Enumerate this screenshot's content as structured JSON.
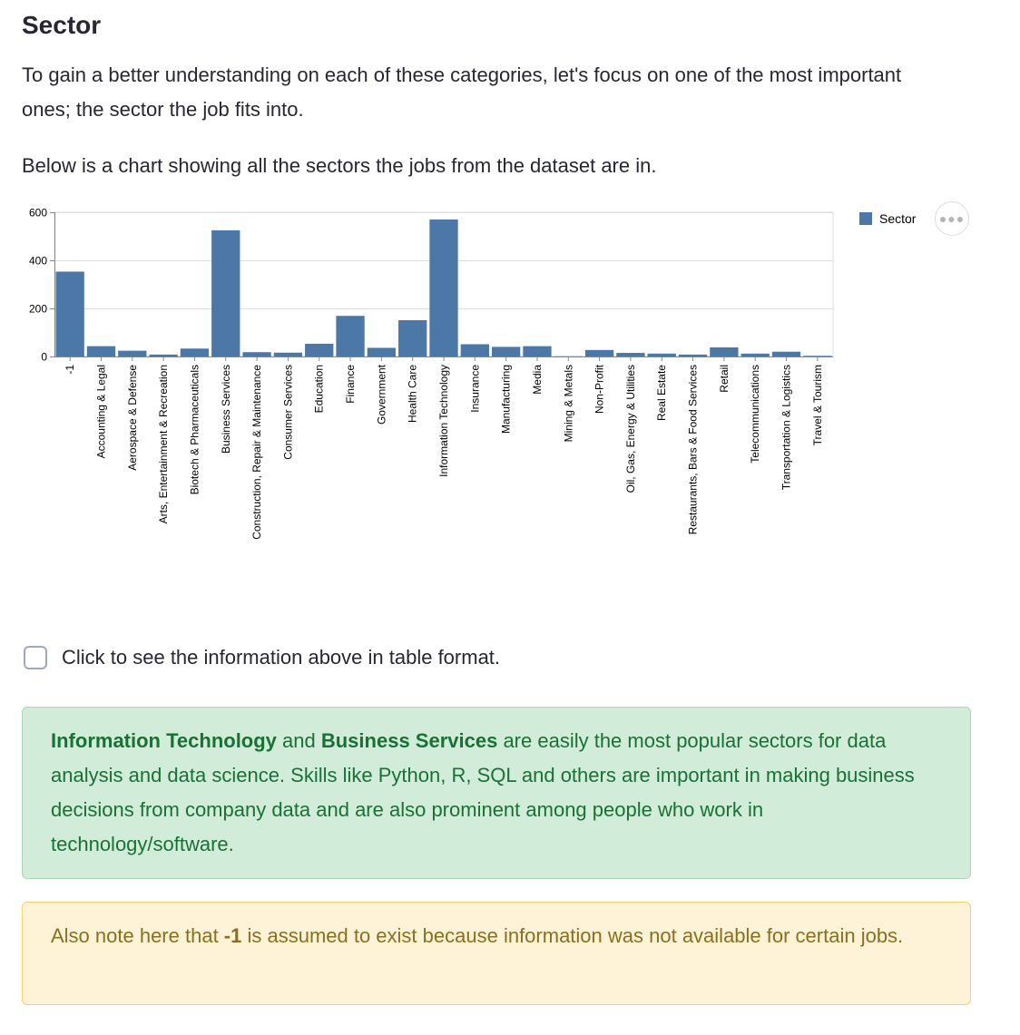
{
  "heading": "Sector",
  "intro": "To gain a better understanding on each of these categories, let's focus on one of the most important ones; the sector the job fits into.",
  "chart_intro": "Below is a chart showing all the sectors the jobs from the dataset are in.",
  "colors": {
    "bar": "#4c78a8",
    "success_bg": "#d1ecd9",
    "success_text": "#177233",
    "warning_bg": "#fef3d6",
    "warning_text": "#8b6f1a"
  },
  "actions_icon": "ellipsis-icon",
  "chart_data": {
    "type": "bar",
    "categories": [
      "-1",
      "Accounting & Legal",
      "Aerospace & Defense",
      "Arts, Entertainment & Recreation",
      "Biotech & Pharmaceuticals",
      "Business Services",
      "Construction, Repair & Maintenance",
      "Consumer Services",
      "Education",
      "Finance",
      "Government",
      "Health Care",
      "Information Technology",
      "Insurance",
      "Manufacturing",
      "Media",
      "Mining & Metals",
      "Non-Profit",
      "Oil, Gas, Energy & Utilities",
      "Real Estate",
      "Restaurants, Bars & Food Services",
      "Retail",
      "Telecommunications",
      "Transportation & Logistics",
      "Travel & Tourism"
    ],
    "series": [
      {
        "name": "Sector",
        "values": [
          353,
          43,
          24,
          8,
          33,
          525,
          18,
          16,
          53,
          169,
          36,
          151,
          570,
          51,
          40,
          43,
          1,
          27,
          15,
          12,
          8,
          38,
          12,
          20,
          3
        ]
      }
    ],
    "title": "",
    "xlabel": "",
    "ylabel": "",
    "ylim": [
      0,
      600
    ],
    "yticks": [
      0,
      200,
      400,
      600
    ],
    "grid": true,
    "legend": "top-right"
  },
  "checkbox_label": "Click to see the information above in table format.",
  "success": {
    "b1": "Information Technology",
    "t1": " and ",
    "b2": "Business Services",
    "t2": " are easily the most popular sectors for data analysis and data science. Skills like Python, R, SQL and others are important in making business decisions from company data and are also prominent among people who work in technology/software."
  },
  "warning": {
    "t1": "Also note here that ",
    "b1": "-1",
    "t2": " is assumed to exist because information was not available for certain jobs."
  }
}
